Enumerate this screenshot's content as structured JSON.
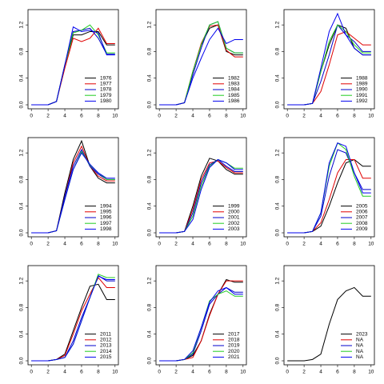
{
  "chart_data": [
    {
      "type": "line",
      "x": [
        0,
        1,
        2,
        3,
        4,
        5,
        6,
        7,
        8,
        9,
        10
      ],
      "xlim": [
        -0.4,
        10.4
      ],
      "ylim": [
        -0.06,
        1.43
      ],
      "xticks": [
        0,
        2,
        4,
        6,
        8,
        10
      ],
      "yticks": [
        {
          "value": 0,
          "label": "0.0"
        },
        0.4,
        0.8,
        1.2
      ],
      "legend": "bottomright",
      "series": [
        {
          "name": "1976",
          "color": "#000000",
          "values": [
            0,
            0,
            0,
            0.05,
            0.6,
            1.05,
            1.05,
            1.1,
            1.1,
            0.9,
            0.9
          ]
        },
        {
          "name": "1977",
          "color": "#e00000",
          "values": [
            0,
            0,
            0,
            0.05,
            0.55,
            1.0,
            0.95,
            1.0,
            1.15,
            0.92,
            0.92
          ]
        },
        {
          "name": "1978",
          "color": "#0000cc",
          "values": [
            0,
            0,
            0,
            0.05,
            0.6,
            1.1,
            1.12,
            1.15,
            1.0,
            0.76,
            0.76
          ]
        },
        {
          "name": "1979",
          "color": "#22cc22",
          "values": [
            0,
            0,
            0,
            0.05,
            0.6,
            1.08,
            1.12,
            1.2,
            1.05,
            0.78,
            0.78
          ]
        },
        {
          "name": "1980",
          "color": "#0000ee",
          "values": [
            0,
            0,
            0,
            0.05,
            0.6,
            1.17,
            1.1,
            1.12,
            1.08,
            0.75,
            0.75
          ]
        }
      ]
    },
    {
      "type": "line",
      "x": [
        0,
        1,
        2,
        3,
        4,
        5,
        6,
        7,
        8,
        9,
        10
      ],
      "xlim": [
        -0.4,
        10.4
      ],
      "ylim": [
        -0.06,
        1.43
      ],
      "xticks": [
        0,
        2,
        4,
        6,
        8,
        10
      ],
      "yticks": [
        {
          "value": 0,
          "label": "0.0"
        },
        0.4,
        0.8,
        1.2
      ],
      "legend": "bottomright",
      "series": [
        {
          "name": "1982",
          "color": "#000000",
          "values": [
            0,
            0,
            0,
            0.03,
            0.5,
            0.9,
            1.15,
            1.2,
            0.8,
            0.75,
            0.75
          ]
        },
        {
          "name": "1983",
          "color": "#e00000",
          "values": [
            0,
            0,
            0,
            0.03,
            0.5,
            0.92,
            1.18,
            1.2,
            0.82,
            0.72,
            0.72
          ]
        },
        {
          "name": "1984",
          "color": "#0000cc",
          "values": [
            0,
            0,
            0,
            0.03,
            0.45,
            0.85,
            1.2,
            1.25,
            0.85,
            0.78,
            0.78
          ]
        },
        {
          "name": "1985",
          "color": "#22cc22",
          "values": [
            0,
            0,
            0,
            0.03,
            0.5,
            0.9,
            1.2,
            1.25,
            0.85,
            0.78,
            0.78
          ]
        },
        {
          "name": "1986",
          "color": "#0000ee",
          "values": [
            0,
            0,
            0,
            0.03,
            0.4,
            0.7,
            0.98,
            1.15,
            0.92,
            0.98,
            0.98
          ]
        }
      ]
    },
    {
      "type": "line",
      "x": [
        0,
        1,
        2,
        3,
        4,
        5,
        6,
        7,
        8,
        9,
        10
      ],
      "xlim": [
        -0.4,
        10.4
      ],
      "ylim": [
        -0.06,
        1.43
      ],
      "xticks": [
        0,
        2,
        4,
        6,
        8,
        10
      ],
      "yticks": [
        {
          "value": 0,
          "label": "0.0"
        },
        0.4,
        0.8,
        1.2
      ],
      "legend": "bottomright",
      "series": [
        {
          "name": "1988",
          "color": "#000000",
          "values": [
            0,
            0,
            0,
            0.02,
            0.5,
            0.9,
            1.2,
            1.15,
            0.85,
            0.75,
            0.75
          ]
        },
        {
          "name": "1989",
          "color": "#e00000",
          "values": [
            0,
            0,
            0,
            0.02,
            0.2,
            0.6,
            1.05,
            1.1,
            1.0,
            0.9,
            0.9
          ]
        },
        {
          "name": "1990",
          "color": "#0000cc",
          "values": [
            0,
            0,
            0,
            0.02,
            0.35,
            0.75,
            1.2,
            1.05,
            0.95,
            0.8,
            0.8
          ]
        },
        {
          "name": "1991",
          "color": "#22cc22",
          "values": [
            0,
            0,
            0,
            0.02,
            0.5,
            0.95,
            1.2,
            1.1,
            0.9,
            0.78,
            0.78
          ]
        },
        {
          "name": "1992",
          "color": "#0000ee",
          "values": [
            0,
            0,
            0,
            0.02,
            0.55,
            1.1,
            1.37,
            1.05,
            0.85,
            0.75,
            0.75
          ]
        }
      ]
    },
    {
      "type": "line",
      "x": [
        0,
        1,
        2,
        3,
        4,
        5,
        6,
        7,
        8,
        9,
        10
      ],
      "xlim": [
        -0.4,
        10.4
      ],
      "ylim": [
        -0.06,
        1.43
      ],
      "xticks": [
        0,
        2,
        4,
        6,
        8,
        10
      ],
      "yticks": [
        {
          "value": 0,
          "label": "0.0"
        },
        0.4,
        0.8,
        1.2
      ],
      "legend": "bottomright",
      "series": [
        {
          "name": "1994",
          "color": "#000000",
          "values": [
            0,
            0,
            0,
            0.03,
            0.6,
            1.1,
            1.38,
            1.0,
            0.82,
            0.75,
            0.75
          ]
        },
        {
          "name": "1995",
          "color": "#e00000",
          "values": [
            0,
            0,
            0,
            0.03,
            0.55,
            1.05,
            1.3,
            1.0,
            0.85,
            0.78,
            0.78
          ]
        },
        {
          "name": "1996",
          "color": "#0000cc",
          "values": [
            0,
            0,
            0,
            0.03,
            0.55,
            1.0,
            1.25,
            1.0,
            0.88,
            0.8,
            0.8
          ]
        },
        {
          "name": "1997",
          "color": "#22cc22",
          "values": [
            0,
            0,
            0,
            0.03,
            0.5,
            0.95,
            1.22,
            1.02,
            0.9,
            0.8,
            0.8
          ]
        },
        {
          "name": "1998",
          "color": "#0000ee",
          "values": [
            0,
            0,
            0,
            0.03,
            0.5,
            0.95,
            1.2,
            1.03,
            0.9,
            0.82,
            0.82
          ]
        }
      ]
    },
    {
      "type": "line",
      "x": [
        0,
        1,
        2,
        3,
        4,
        5,
        6,
        7,
        8,
        9,
        10
      ],
      "xlim": [
        -0.4,
        10.4
      ],
      "ylim": [
        -0.06,
        1.43
      ],
      "xticks": [
        0,
        2,
        4,
        6,
        8,
        10
      ],
      "yticks": [
        {
          "value": 0,
          "label": "0.0"
        },
        0.4,
        0.8,
        1.2
      ],
      "legend": "bottomright",
      "series": [
        {
          "name": "1999",
          "color": "#000000",
          "values": [
            0,
            0,
            0,
            0.02,
            0.4,
            0.85,
            1.12,
            1.08,
            0.95,
            0.88,
            0.88
          ]
        },
        {
          "name": "2000",
          "color": "#e00000",
          "values": [
            0,
            0,
            0,
            0.02,
            0.35,
            0.8,
            1.05,
            1.08,
            0.98,
            0.9,
            0.9
          ]
        },
        {
          "name": "2001",
          "color": "#0000cc",
          "values": [
            0,
            0,
            0,
            0.02,
            0.3,
            0.75,
            1.02,
            1.1,
            1.0,
            0.92,
            0.92
          ]
        },
        {
          "name": "2002",
          "color": "#22cc22",
          "values": [
            0,
            0,
            0,
            0.02,
            0.25,
            0.7,
            1.0,
            1.1,
            1.05,
            0.97,
            0.97
          ]
        },
        {
          "name": "2003",
          "color": "#0000ee",
          "values": [
            0,
            0,
            0,
            0.02,
            0.2,
            0.65,
            0.98,
            1.1,
            1.05,
            0.95,
            0.95
          ]
        }
      ]
    },
    {
      "type": "line",
      "x": [
        0,
        1,
        2,
        3,
        4,
        5,
        6,
        7,
        8,
        9,
        10
      ],
      "xlim": [
        -0.4,
        10.4
      ],
      "ylim": [
        -0.06,
        1.43
      ],
      "xticks": [
        0,
        2,
        4,
        6,
        8,
        10
      ],
      "yticks": [
        {
          "value": 0,
          "label": "0.0"
        },
        0.4,
        0.8,
        1.2
      ],
      "legend": "bottomright",
      "series": [
        {
          "name": "2005",
          "color": "#000000",
          "values": [
            0,
            0,
            0,
            0.02,
            0.1,
            0.4,
            0.75,
            1.05,
            1.1,
            1.0,
            1.0
          ]
        },
        {
          "name": "2006",
          "color": "#e00000",
          "values": [
            0,
            0,
            0,
            0.02,
            0.15,
            0.5,
            0.9,
            1.1,
            1.1,
            0.82,
            0.82
          ]
        },
        {
          "name": "2007",
          "color": "#0000cc",
          "values": [
            0,
            0,
            0,
            0.02,
            0.25,
            0.85,
            1.25,
            1.2,
            0.9,
            0.65,
            0.65
          ]
        },
        {
          "name": "2008",
          "color": "#22cc22",
          "values": [
            0,
            0,
            0,
            0.02,
            0.3,
            1.0,
            1.35,
            1.25,
            0.85,
            0.55,
            0.55
          ]
        },
        {
          "name": "2009",
          "color": "#0000ee",
          "values": [
            0,
            0,
            0,
            0.02,
            0.3,
            1.05,
            1.35,
            1.3,
            0.9,
            0.6,
            0.6
          ]
        }
      ]
    },
    {
      "type": "line",
      "x": [
        0,
        1,
        2,
        3,
        4,
        5,
        6,
        7,
        8,
        9,
        10
      ],
      "xlim": [
        -0.4,
        10.4
      ],
      "ylim": [
        -0.06,
        1.43
      ],
      "xticks": [
        0,
        2,
        4,
        6,
        8,
        10
      ],
      "yticks": [
        {
          "value": 0,
          "label": "0.0"
        },
        0.4,
        0.8,
        1.2
      ],
      "legend": "bottomright",
      "series": [
        {
          "name": "2011",
          "color": "#000000",
          "values": [
            0,
            0,
            0,
            0.02,
            0.1,
            0.45,
            0.8,
            1.12,
            1.15,
            0.92,
            0.92
          ]
        },
        {
          "name": "2012",
          "color": "#e00000",
          "values": [
            0,
            0,
            0,
            0.02,
            0.08,
            0.4,
            0.75,
            1.0,
            1.25,
            1.1,
            1.1
          ]
        },
        {
          "name": "2013",
          "color": "#0000cc",
          "values": [
            0,
            0,
            0,
            0.02,
            0.05,
            0.3,
            0.65,
            0.95,
            1.28,
            1.2,
            1.2
          ]
        },
        {
          "name": "2014",
          "color": "#22cc22",
          "values": [
            0,
            0,
            0,
            0.02,
            0.05,
            0.25,
            0.6,
            0.95,
            1.3,
            1.25,
            1.25
          ]
        },
        {
          "name": "2015",
          "color": "#0000ee",
          "values": [
            0,
            0,
            0,
            0.02,
            0.05,
            0.25,
            0.6,
            0.95,
            1.27,
            1.22,
            1.22
          ]
        }
      ]
    },
    {
      "type": "line",
      "x": [
        0,
        1,
        2,
        3,
        4,
        5,
        6,
        7,
        8,
        9,
        10
      ],
      "xlim": [
        -0.4,
        10.4
      ],
      "ylim": [
        -0.06,
        1.43
      ],
      "xticks": [
        0,
        2,
        4,
        6,
        8,
        10
      ],
      "yticks": [
        {
          "value": 0,
          "label": "0.0"
        },
        0.4,
        0.8,
        1.2
      ],
      "legend": "bottomright",
      "series": [
        {
          "name": "2017",
          "color": "#000000",
          "values": [
            0,
            0,
            0,
            0.02,
            0.08,
            0.3,
            0.7,
            1.0,
            1.22,
            1.18,
            1.18
          ]
        },
        {
          "name": "2018",
          "color": "#e00000",
          "values": [
            0,
            0,
            0,
            0.02,
            0.05,
            0.3,
            0.68,
            1.0,
            1.2,
            1.2,
            1.2
          ]
        },
        {
          "name": "2019",
          "color": "#0000cc",
          "values": [
            0,
            0,
            0,
            0.02,
            0.1,
            0.45,
            0.85,
            1.0,
            1.1,
            1.03,
            1.03
          ]
        },
        {
          "name": "2020",
          "color": "#22cc22",
          "values": [
            0,
            0,
            0,
            0.02,
            0.12,
            0.5,
            0.9,
            1.0,
            1.05,
            0.97,
            0.97
          ]
        },
        {
          "name": "2021",
          "color": "#0000ee",
          "values": [
            0,
            0,
            0,
            0.02,
            0.15,
            0.5,
            0.88,
            1.05,
            1.1,
            1.0,
            1.0
          ]
        }
      ]
    },
    {
      "type": "line",
      "x": [
        0,
        1,
        2,
        3,
        4,
        5,
        6,
        7,
        8,
        9,
        10
      ],
      "xlim": [
        -0.4,
        10.4
      ],
      "ylim": [
        -0.06,
        1.43
      ],
      "xticks": [
        0,
        2,
        4,
        6,
        8,
        10
      ],
      "yticks": [
        {
          "value": 0,
          "label": "0.0"
        },
        0.4,
        0.8,
        1.2
      ],
      "legend": "bottomright",
      "series": [
        {
          "name": "2023",
          "color": "#000000",
          "values": [
            0,
            0,
            0,
            0.02,
            0.1,
            0.55,
            0.92,
            1.05,
            1.1,
            0.97,
            0.97
          ]
        },
        {
          "name": "NA",
          "color": "#e00000",
          "values": [
            null,
            null,
            null,
            null,
            null,
            null,
            null,
            null,
            null,
            null,
            null
          ]
        },
        {
          "name": "NA",
          "color": "#0000cc",
          "values": [
            null,
            null,
            null,
            null,
            null,
            null,
            null,
            null,
            null,
            null,
            null
          ]
        },
        {
          "name": "NA",
          "color": "#22cc22",
          "values": [
            null,
            null,
            null,
            null,
            null,
            null,
            null,
            null,
            null,
            null,
            null
          ]
        },
        {
          "name": "NA",
          "color": "#0000ee",
          "values": [
            null,
            null,
            null,
            null,
            null,
            null,
            null,
            null,
            null,
            null,
            null
          ]
        }
      ]
    }
  ]
}
